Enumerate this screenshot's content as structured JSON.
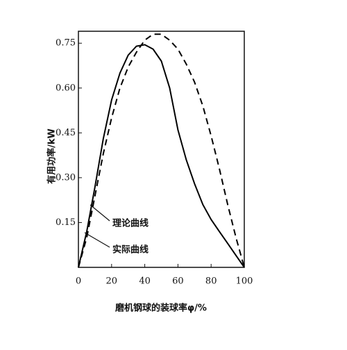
{
  "chart_data": {
    "type": "line",
    "xlabel": "磨机钢球的装球率φ/%",
    "ylabel": "有用功率/kW",
    "x": [
      0,
      5,
      10,
      15,
      20,
      25,
      30,
      35,
      40,
      45,
      50,
      55,
      60,
      65,
      70,
      75,
      80,
      85,
      90,
      95,
      100
    ],
    "series": [
      {
        "name": "理论曲线",
        "color": "#000000",
        "dash": true,
        "values": [
          0,
          0.1,
          0.24,
          0.38,
          0.5,
          0.6,
          0.67,
          0.72,
          0.76,
          0.78,
          0.78,
          0.76,
          0.73,
          0.68,
          0.62,
          0.54,
          0.44,
          0.33,
          0.21,
          0.1,
          0
        ]
      },
      {
        "name": "实际曲线",
        "color": "#000000",
        "dash": false,
        "values": [
          0,
          0.12,
          0.27,
          0.43,
          0.56,
          0.65,
          0.71,
          0.74,
          0.745,
          0.73,
          0.69,
          0.6,
          0.46,
          0.36,
          0.28,
          0.21,
          0.16,
          0.12,
          0.08,
          0.04,
          0
        ]
      }
    ],
    "xlim": [
      0,
      100
    ],
    "xticks": [
      0,
      20,
      40,
      60,
      80,
      100
    ],
    "ylim": [
      0,
      0.79
    ],
    "yticks": [
      0.15,
      {
        "value": 0.3,
        "label": "0.30"
      },
      0.45,
      {
        "value": 0.6,
        "label": "0.60"
      },
      0.75
    ],
    "grid": false
  }
}
